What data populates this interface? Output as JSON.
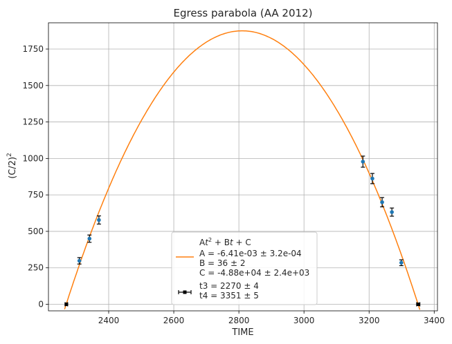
{
  "chart_data": {
    "type": "scatter",
    "title": "Egress parabola (AA 2012)",
    "xlabel": "TIME",
    "ylabel": "(C/2)",
    "ylabel_sup": "2",
    "xlim": [
      2215,
      3410
    ],
    "ylim": [
      -45,
      1930
    ],
    "xticks": [
      2400,
      2600,
      2800,
      3000,
      3200,
      3400
    ],
    "yticks": [
      0,
      250,
      500,
      750,
      1000,
      1250,
      1500,
      1750
    ],
    "grid": true,
    "legend_position": "lower center",
    "series": [
      {
        "kind": "line",
        "color": "#ff7f0e",
        "fit": {
          "A": -0.00641,
          "B": 36,
          "C": -48800,
          "vertex_x": 2810,
          "vertex_y": 1875,
          "roots": [
            2270,
            3351
          ]
        },
        "x_range": [
          2260,
          3365
        ]
      },
      {
        "kind": "errorbar",
        "color": "#1f77b4",
        "points": [
          {
            "x": 2310,
            "y": 298,
            "err": 22
          },
          {
            "x": 2341,
            "y": 450,
            "err": 25
          },
          {
            "x": 2370,
            "y": 578,
            "err": 28
          },
          {
            "x": 3181,
            "y": 978,
            "err": 38
          },
          {
            "x": 3210,
            "y": 862,
            "err": 35
          },
          {
            "x": 3240,
            "y": 700,
            "err": 32
          },
          {
            "x": 3270,
            "y": 632,
            "err": 28
          },
          {
            "x": 3299,
            "y": 285,
            "err": 20
          }
        ]
      },
      {
        "kind": "errorbar",
        "color": "#000000",
        "horizontal": true,
        "points": [
          {
            "x": 2270,
            "y": 0,
            "err": 4
          },
          {
            "x": 3351,
            "y": 0,
            "err": 5
          }
        ]
      }
    ],
    "legend": {
      "fit_lines": [
        {
          "parts": [
            "A",
            "t",
            "2",
            " + B",
            "t",
            " + C"
          ]
        },
        {
          "text": "A = -6.41e-03 ± 3.2e-04"
        },
        {
          "text": "B = 36 ± 2"
        },
        {
          "text": "C = -4.88e+04 ± 2.4e+03"
        }
      ],
      "point_lines": [
        {
          "text": "t3 = 2270 ± 4"
        },
        {
          "text": "t4 = 3351 ± 5"
        }
      ]
    }
  }
}
